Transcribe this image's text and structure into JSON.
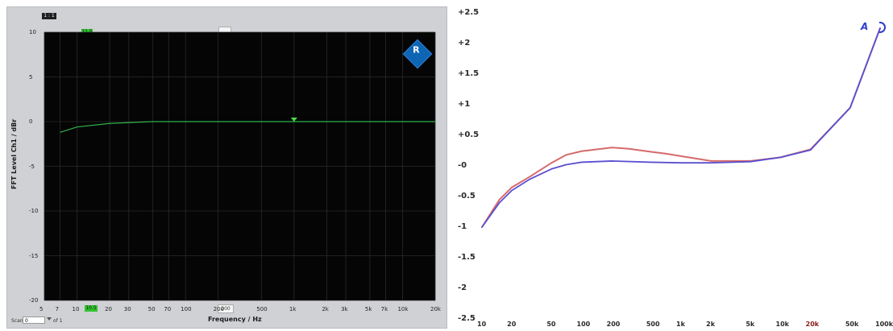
{
  "left": {
    "badge": "1 : 1",
    "ylabel": "FFT Level Ch1 / dBr",
    "xlabel": "Frequency / Hz",
    "yticks": [
      "10",
      "5",
      "0",
      "-5",
      "-10",
      "-15",
      "-20"
    ],
    "xticks": [
      "5",
      "7",
      "10",
      "20",
      "30",
      "50",
      "70",
      "100",
      "200",
      "500",
      "1k",
      "2k",
      "3k",
      "5k",
      "7k",
      "10k",
      "20k"
    ],
    "cursor_top": "11.5",
    "cursor_bottom": "10.5",
    "box200": "200",
    "scan_label": "Scan",
    "scan_value": "0",
    "of_label": "of 1",
    "rs_logo": "R"
  },
  "chart_data": [
    {
      "type": "line",
      "title": "",
      "xlabel": "Frequency / Hz",
      "ylabel": "FFT Level Ch1 / dBr",
      "xscale": "log",
      "xlim": [
        5,
        20000
      ],
      "ylim": [
        -20,
        10
      ],
      "grid": true,
      "series": [
        {
          "color": "#2db34a",
          "points": [
            [
              7,
              -1.2
            ],
            [
              10,
              -0.6
            ],
            [
              20,
              -0.2
            ],
            [
              50,
              0
            ],
            [
              100,
              0
            ],
            [
              200,
              0
            ],
            [
              1000,
              0
            ],
            [
              5000,
              0
            ],
            [
              10000,
              0
            ],
            [
              20000,
              0
            ]
          ]
        }
      ]
    },
    {
      "type": "line",
      "title": "",
      "xlabel": "",
      "ylabel": "",
      "xscale": "log",
      "xlim": [
        10,
        100000
      ],
      "ylim": [
        -2.5,
        2.5
      ],
      "xticks": [
        "10",
        "20",
        "50",
        "100",
        "200",
        "500",
        "1k",
        "2k",
        "5k",
        "10k",
        "20k",
        "50k",
        "100k"
      ],
      "yticks": [
        "+2.5",
        "+2",
        "+1.5",
        "+1",
        "+0.5",
        "-0",
        "-0.5",
        "-1",
        "-1.5",
        "-2",
        "-2.5"
      ],
      "grid": false,
      "series": [
        {
          "color": "#d56a6a",
          "points": [
            [
              10,
              -1
            ],
            [
              15,
              -0.55
            ],
            [
              20,
              -0.35
            ],
            [
              30,
              -0.18
            ],
            [
              50,
              0.05
            ],
            [
              70,
              0.18
            ],
            [
              100,
              0.24
            ],
            [
              200,
              0.3
            ],
            [
              300,
              0.28
            ],
            [
              500,
              0.23
            ],
            [
              700,
              0.2
            ],
            [
              1000,
              0.16
            ],
            [
              2000,
              0.08
            ],
            [
              5000,
              0.08
            ],
            [
              10000,
              0.14
            ],
            [
              20000,
              0.27
            ],
            [
              50000,
              0.95
            ],
            [
              100000,
              2.25
            ]
          ]
        },
        {
          "color": "#5a4fd0",
          "points": [
            [
              10,
              -1
            ],
            [
              15,
              -0.6
            ],
            [
              20,
              -0.4
            ],
            [
              30,
              -0.22
            ],
            [
              50,
              -0.05
            ],
            [
              70,
              0.02
            ],
            [
              100,
              0.06
            ],
            [
              200,
              0.08
            ],
            [
              500,
              0.06
            ],
            [
              1000,
              0.05
            ],
            [
              2000,
              0.05
            ],
            [
              5000,
              0.07
            ],
            [
              10000,
              0.14
            ],
            [
              20000,
              0.26
            ],
            [
              50000,
              0.95
            ],
            [
              100000,
              2.25
            ]
          ]
        }
      ]
    }
  ]
}
